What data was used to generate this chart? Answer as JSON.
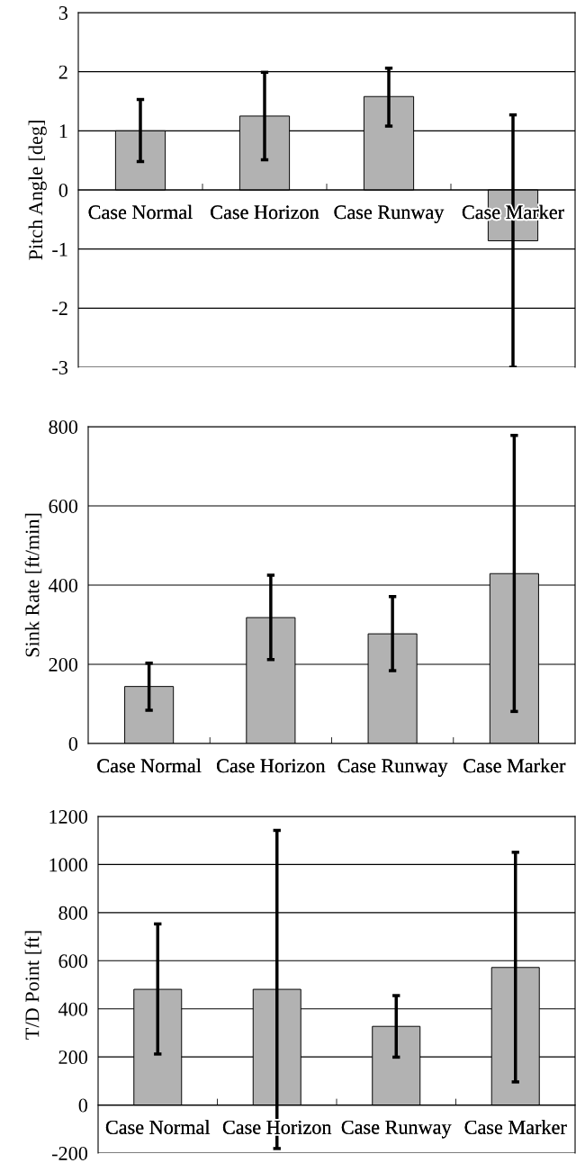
{
  "chart_data": [
    {
      "type": "bar",
      "ylabel": "Pitch Angle [deg]",
      "categories": [
        "Case Normal",
        "Case Horizon",
        "Case Runway",
        "Case Marker"
      ],
      "values": [
        1.0,
        1.25,
        1.58,
        -0.86
      ],
      "errors": [
        [
          0.48,
          1.53
        ],
        [
          0.51,
          1.99
        ],
        [
          1.08,
          2.06
        ],
        [
          -3.0,
          1.27
        ]
      ],
      "color": "#b2b2b2",
      "ylim": [
        -3,
        3
      ],
      "yticks": [
        -3,
        -2,
        -1,
        0,
        1,
        2,
        3
      ],
      "grid": "y"
    },
    {
      "type": "bar",
      "ylabel": "Sink Rate [ft/min]",
      "categories": [
        "Case Normal",
        "Case Horizon",
        "Case Runway",
        "Case Marker"
      ],
      "values": [
        144,
        318,
        277,
        429
      ],
      "errors": [
        [
          84,
          203
        ],
        [
          212,
          425
        ],
        [
          184,
          371
        ],
        [
          81,
          778
        ]
      ],
      "color": "#b2b2b2",
      "ylim": [
        0,
        800
      ],
      "yticks": [
        0,
        200,
        400,
        600,
        800
      ],
      "grid": "y"
    },
    {
      "type": "bar",
      "ylabel": "T/D Point [ft]",
      "categories": [
        "Case Normal",
        "Case Horizon",
        "Case Runway",
        "Case Marker"
      ],
      "values": [
        481,
        481,
        327,
        572
      ],
      "errors": [
        [
          212,
          753
        ],
        [
          -181,
          1142
        ],
        [
          199,
          455
        ],
        [
          96,
          1051
        ]
      ],
      "color": "#b2b2b2",
      "ylim": [
        -200,
        1200
      ],
      "yticks": [
        -200,
        0,
        200,
        400,
        600,
        800,
        1000,
        1200
      ],
      "grid": "y"
    }
  ]
}
